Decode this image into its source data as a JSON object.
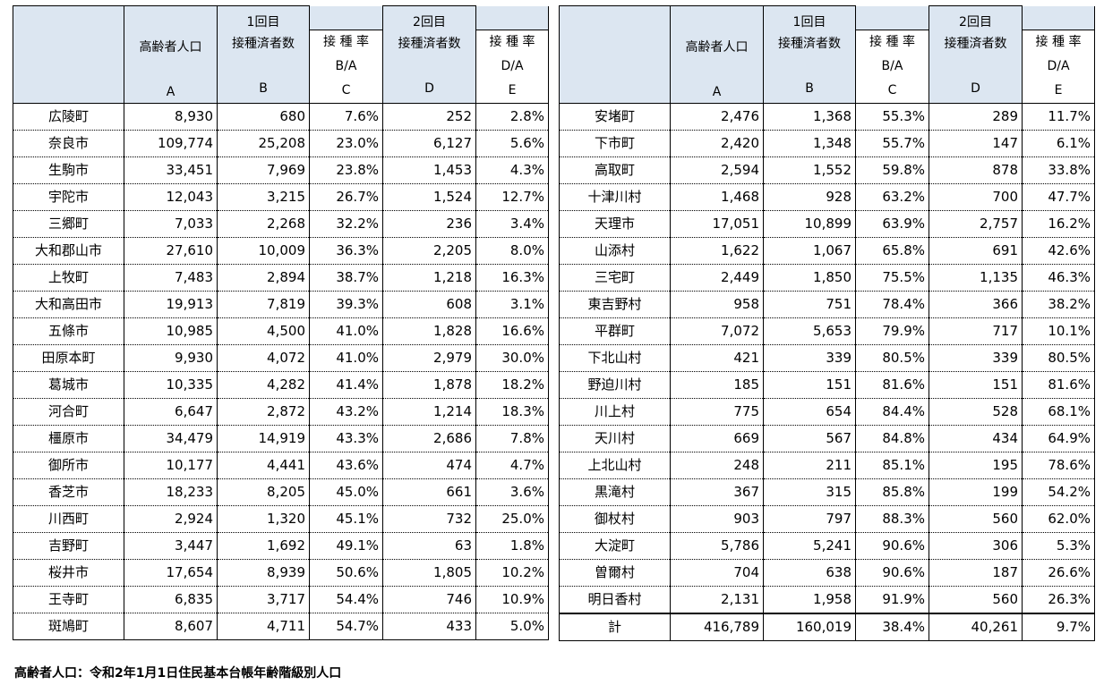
{
  "headers": {
    "population": "高齢者人口",
    "first_line1": "1回目",
    "first_line2": "接種済者数",
    "rate_label": "接 種 率",
    "rate_first": "B/A",
    "second_line1": "2回目",
    "second_line2": "接種済者数",
    "rate_second": "D/A",
    "col_a": "A",
    "col_b": "B",
    "col_c": "C",
    "col_d": "D",
    "col_e": "E"
  },
  "left_rows": [
    {
      "name": "広陵町",
      "a": "8,930",
      "b": "680",
      "c": "7.6%",
      "d": "252",
      "e": "2.8%"
    },
    {
      "name": "奈良市",
      "a": "109,774",
      "b": "25,208",
      "c": "23.0%",
      "d": "6,127",
      "e": "5.6%"
    },
    {
      "name": "生駒市",
      "a": "33,451",
      "b": "7,969",
      "c": "23.8%",
      "d": "1,453",
      "e": "4.3%"
    },
    {
      "name": "宇陀市",
      "a": "12,043",
      "b": "3,215",
      "c": "26.7%",
      "d": "1,524",
      "e": "12.7%"
    },
    {
      "name": "三郷町",
      "a": "7,033",
      "b": "2,268",
      "c": "32.2%",
      "d": "236",
      "e": "3.4%"
    },
    {
      "name": "大和郡山市",
      "a": "27,610",
      "b": "10,009",
      "c": "36.3%",
      "d": "2,205",
      "e": "8.0%"
    },
    {
      "name": "上牧町",
      "a": "7,483",
      "b": "2,894",
      "c": "38.7%",
      "d": "1,218",
      "e": "16.3%"
    },
    {
      "name": "大和高田市",
      "a": "19,913",
      "b": "7,819",
      "c": "39.3%",
      "d": "608",
      "e": "3.1%"
    },
    {
      "name": "五條市",
      "a": "10,985",
      "b": "4,500",
      "c": "41.0%",
      "d": "1,828",
      "e": "16.6%"
    },
    {
      "name": "田原本町",
      "a": "9,930",
      "b": "4,072",
      "c": "41.0%",
      "d": "2,979",
      "e": "30.0%"
    },
    {
      "name": "葛城市",
      "a": "10,335",
      "b": "4,282",
      "c": "41.4%",
      "d": "1,878",
      "e": "18.2%"
    },
    {
      "name": "河合町",
      "a": "6,647",
      "b": "2,872",
      "c": "43.2%",
      "d": "1,214",
      "e": "18.3%"
    },
    {
      "name": "橿原市",
      "a": "34,479",
      "b": "14,919",
      "c": "43.3%",
      "d": "2,686",
      "e": "7.8%"
    },
    {
      "name": "御所市",
      "a": "10,177",
      "b": "4,441",
      "c": "43.6%",
      "d": "474",
      "e": "4.7%"
    },
    {
      "name": "香芝市",
      "a": "18,233",
      "b": "8,205",
      "c": "45.0%",
      "d": "661",
      "e": "3.6%"
    },
    {
      "name": "川西町",
      "a": "2,924",
      "b": "1,320",
      "c": "45.1%",
      "d": "732",
      "e": "25.0%"
    },
    {
      "name": "吉野町",
      "a": "3,447",
      "b": "1,692",
      "c": "49.1%",
      "d": "63",
      "e": "1.8%"
    },
    {
      "name": "桜井市",
      "a": "17,654",
      "b": "8,939",
      "c": "50.6%",
      "d": "1,805",
      "e": "10.2%"
    },
    {
      "name": "王寺町",
      "a": "6,835",
      "b": "3,717",
      "c": "54.4%",
      "d": "746",
      "e": "10.9%"
    },
    {
      "name": "斑鳩町",
      "a": "8,607",
      "b": "4,711",
      "c": "54.7%",
      "d": "433",
      "e": "5.0%"
    }
  ],
  "right_rows": [
    {
      "name": "安堵町",
      "a": "2,476",
      "b": "1,368",
      "c": "55.3%",
      "d": "289",
      "e": "11.7%"
    },
    {
      "name": "下市町",
      "a": "2,420",
      "b": "1,348",
      "c": "55.7%",
      "d": "147",
      "e": "6.1%"
    },
    {
      "name": "高取町",
      "a": "2,594",
      "b": "1,552",
      "c": "59.8%",
      "d": "878",
      "e": "33.8%"
    },
    {
      "name": "十津川村",
      "a": "1,468",
      "b": "928",
      "c": "63.2%",
      "d": "700",
      "e": "47.7%"
    },
    {
      "name": "天理市",
      "a": "17,051",
      "b": "10,899",
      "c": "63.9%",
      "d": "2,757",
      "e": "16.2%"
    },
    {
      "name": "山添村",
      "a": "1,622",
      "b": "1,067",
      "c": "65.8%",
      "d": "691",
      "e": "42.6%"
    },
    {
      "name": "三宅町",
      "a": "2,449",
      "b": "1,850",
      "c": "75.5%",
      "d": "1,135",
      "e": "46.3%"
    },
    {
      "name": "東吉野村",
      "a": "958",
      "b": "751",
      "c": "78.4%",
      "d": "366",
      "e": "38.2%"
    },
    {
      "name": "平群町",
      "a": "7,072",
      "b": "5,653",
      "c": "79.9%",
      "d": "717",
      "e": "10.1%"
    },
    {
      "name": "下北山村",
      "a": "421",
      "b": "339",
      "c": "80.5%",
      "d": "339",
      "e": "80.5%"
    },
    {
      "name": "野迫川村",
      "a": "185",
      "b": "151",
      "c": "81.6%",
      "d": "151",
      "e": "81.6%"
    },
    {
      "name": "川上村",
      "a": "775",
      "b": "654",
      "c": "84.4%",
      "d": "528",
      "e": "68.1%"
    },
    {
      "name": "天川村",
      "a": "669",
      "b": "567",
      "c": "84.8%",
      "d": "434",
      "e": "64.9%"
    },
    {
      "name": "上北山村",
      "a": "248",
      "b": "211",
      "c": "85.1%",
      "d": "195",
      "e": "78.6%"
    },
    {
      "name": "黒滝村",
      "a": "367",
      "b": "315",
      "c": "85.8%",
      "d": "199",
      "e": "54.2%"
    },
    {
      "name": "御杖村",
      "a": "903",
      "b": "797",
      "c": "88.3%",
      "d": "560",
      "e": "62.0%"
    },
    {
      "name": "大淀町",
      "a": "5,786",
      "b": "5,241",
      "c": "90.6%",
      "d": "306",
      "e": "5.3%"
    },
    {
      "name": "曽爾村",
      "a": "704",
      "b": "638",
      "c": "90.6%",
      "d": "187",
      "e": "26.6%"
    },
    {
      "name": "明日香村",
      "a": "2,131",
      "b": "1,958",
      "c": "91.9%",
      "d": "560",
      "e": "26.3%"
    }
  ],
  "total": {
    "name": "計",
    "a": "416,789",
    "b": "160,019",
    "c": "38.4%",
    "d": "40,261",
    "e": "9.7%"
  },
  "note": "高齢者人口：令和2年1月1日住民基本台帳年齢階級別人口"
}
